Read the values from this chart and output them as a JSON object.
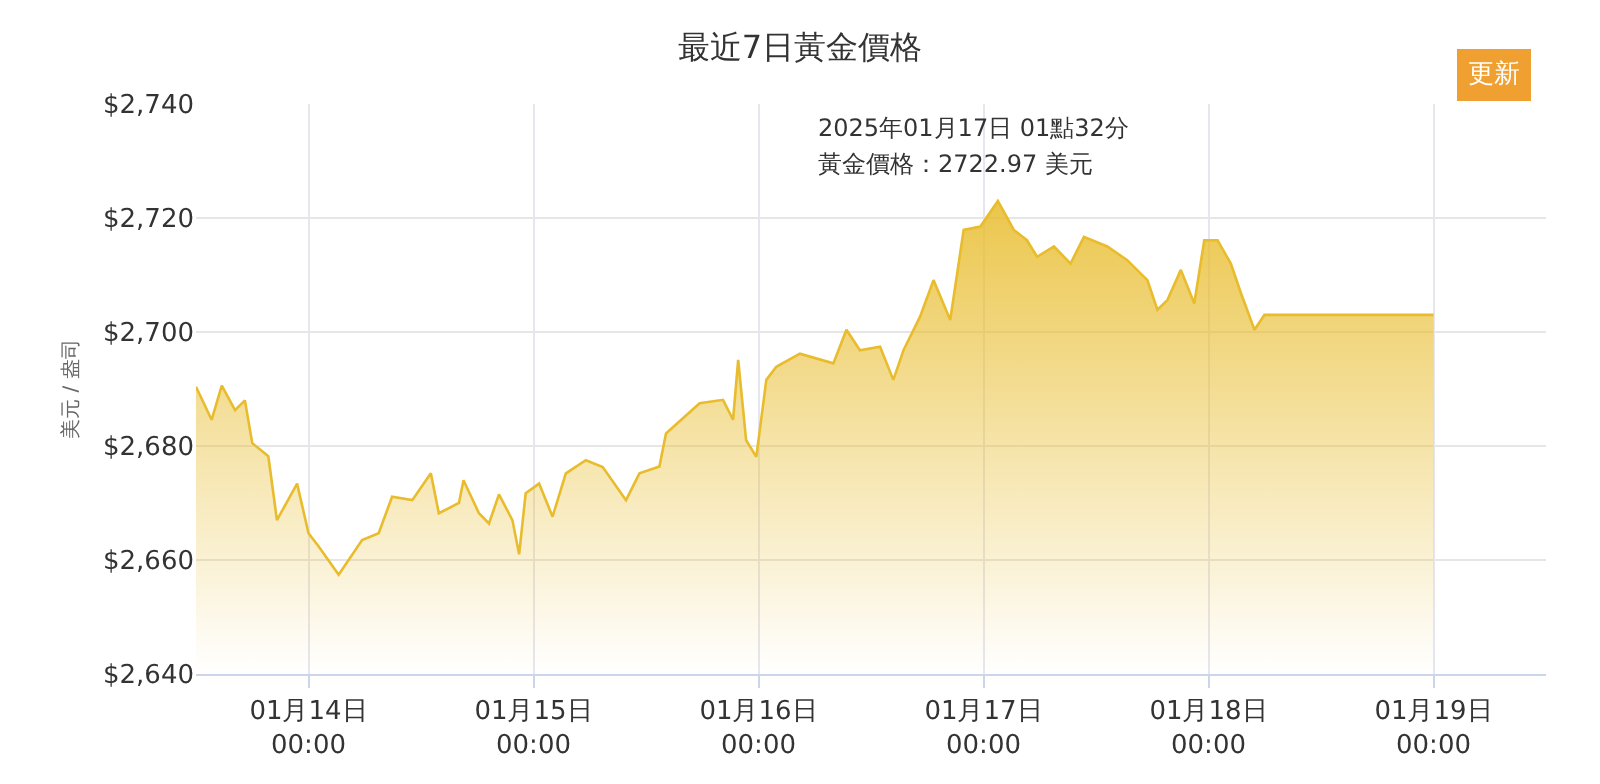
{
  "chart_data": {
    "type": "area",
    "title": "最近7日黃金價格",
    "ylabel": "美元 / 盎司",
    "x": [
      "2025-01-13T12:00",
      "2025-01-13T13:40",
      "2025-01-13T14:45",
      "2025-01-13T16:10",
      "2025-01-13T17:13",
      "2025-01-13T18:00",
      "2025-01-13T19:43",
      "2025-01-13T20:38",
      "2025-01-13T22:47",
      "2025-01-14T00:00",
      "2025-01-14T01:04",
      "2025-01-14T03:13",
      "2025-01-14T05:43",
      "2025-01-14T07:29",
      "2025-01-14T08:55",
      "2025-01-14T11:04",
      "2025-01-14T13:03",
      "2025-01-14T13:54",
      "2025-01-14T16:03",
      "2025-01-14T16:32",
      "2025-01-14T18:11",
      "2025-01-14T19:15",
      "2025-01-14T20:19",
      "2025-01-14T21:45",
      "2025-01-14T22:28",
      "2025-01-14T23:10",
      "2025-01-15T00:36",
      "2025-01-15T02:02",
      "2025-01-15T03:27",
      "2025-01-15T05:35",
      "2025-01-15T07:23",
      "2025-01-15T09:52",
      "2025-01-15T11:18",
      "2025-01-15T13:26",
      "2025-01-15T14:08",
      "2025-01-15T17:43",
      "2025-01-15T20:13",
      "2025-01-15T21:17",
      "2025-01-15T21:50",
      "2025-01-15T22:41",
      "2025-01-15T23:46",
      "2025-01-16T00:50",
      "2025-01-16T01:54",
      "2025-01-16T04:25",
      "2025-01-16T07:59",
      "2025-01-16T09:23",
      "2025-01-16T10:49",
      "2025-01-16T12:58",
      "2025-01-16T14:23",
      "2025-01-16T15:28",
      "2025-01-16T17:14",
      "2025-01-16T18:40",
      "2025-01-16T20:27",
      "2025-01-16T21:53",
      "2025-01-16T23:40",
      "2025-01-17T01:32",
      "2025-01-17T03:14",
      "2025-01-17T04:38",
      "2025-01-17T05:43",
      "2025-01-17T07:31",
      "2025-01-17T09:17",
      "2025-01-17T10:43",
      "2025-01-17T13:12",
      "2025-01-17T15:20",
      "2025-01-17T17:29",
      "2025-01-17T18:33",
      "2025-01-17T19:37",
      "2025-01-17T21:03",
      "2025-01-17T22:29",
      "2025-01-17T23:33",
      "2025-01-18T00:58",
      "2025-01-18T02:23",
      "2025-01-18T03:28",
      "2025-01-18T04:54",
      "2025-01-18T05:58",
      "2025-01-19T00:00"
    ],
    "series": [
      {
        "color": "#e8bc2c",
        "values": [
          2690.4,
          2684.6,
          2690.6,
          2686.3,
          2688.0,
          2680.5,
          2678.2,
          2667.0,
          2673.4,
          2664.7,
          2662.4,
          2657.4,
          2663.5,
          2664.7,
          2671.1,
          2670.5,
          2675.2,
          2668.2,
          2670.0,
          2674.0,
          2668.2,
          2666.4,
          2671.5,
          2667.0,
          2661.0,
          2671.7,
          2673.4,
          2667.6,
          2675.2,
          2677.5,
          2676.3,
          2670.5,
          2675.2,
          2676.4,
          2682.2,
          2687.5,
          2688.1,
          2684.6,
          2695.1,
          2681.0,
          2678.1,
          2691.6,
          2693.9,
          2696.2,
          2694.5,
          2700.4,
          2696.8,
          2697.4,
          2691.6,
          2696.8,
          2702.7,
          2709.1,
          2702.1,
          2717.9,
          2718.5,
          2722.97,
          2717.9,
          2716.1,
          2713.2,
          2715.0,
          2712.0,
          2716.7,
          2715.0,
          2712.6,
          2709.1,
          2703.9,
          2705.6,
          2710.9,
          2705.0,
          2716.1,
          2716.1,
          2712.0,
          2706.8,
          2700.4,
          2703.0,
          2703.0
        ]
      }
    ],
    "xlim": [
      "2025-01-13T12:00",
      "2025-01-19T12:00"
    ],
    "xticks": [
      {
        "value": "2025-01-14",
        "label": "01月14日\n00:00"
      },
      {
        "value": "2025-01-15",
        "label": "01月15日\n00:00"
      },
      {
        "value": "2025-01-16",
        "label": "01月16日\n00:00"
      },
      {
        "value": "2025-01-17",
        "label": "01月17日\n00:00"
      },
      {
        "value": "2025-01-18",
        "label": "01月18日\n00:00"
      },
      {
        "value": "2025-01-19",
        "label": "01月19日\n00:00"
      }
    ],
    "ylim": [
      2640,
      2740
    ],
    "yticks": [
      {
        "value": 2640,
        "label": "$2,640"
      },
      {
        "value": 2660,
        "label": "$2,660"
      },
      {
        "value": 2680,
        "label": "$2,680"
      },
      {
        "value": 2700,
        "label": "$2,700"
      },
      {
        "value": 2720,
        "label": "$2,720"
      },
      {
        "value": 2740,
        "label": "$2,740"
      }
    ],
    "grid": true,
    "marker": "none",
    "line_style": "solid",
    "annotations": [
      {
        "text": "2025年01月17日 01點32分",
        "x": "2025-01-17T01:32",
        "y": 2722.97
      },
      {
        "text": "黃金價格：2722.97 美元",
        "x": "2025-01-17T01:32",
        "y": 2722.97
      },
      "更新"
    ]
  }
}
